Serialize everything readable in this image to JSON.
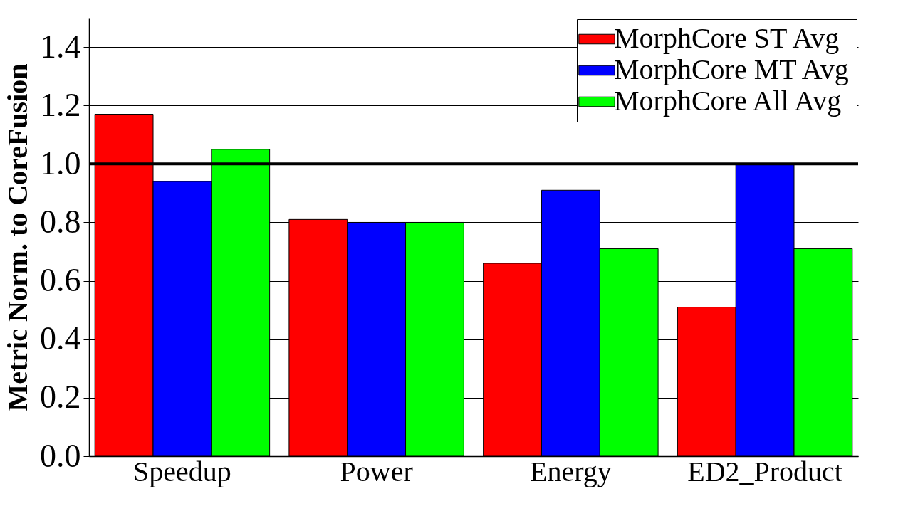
{
  "chart_data": {
    "type": "bar",
    "ylabel": "Metric Norm. to CoreFusion",
    "categories": [
      "Speedup",
      "Power",
      "Energy",
      "ED2_Product"
    ],
    "series": [
      {
        "name": "MorphCore ST Avg",
        "color": "#ff0000",
        "values": [
          1.17,
          0.81,
          0.66,
          0.51
        ]
      },
      {
        "name": "MorphCore MT Avg",
        "color": "#0000ff",
        "values": [
          0.94,
          0.8,
          0.91,
          1.0
        ]
      },
      {
        "name": "MorphCore All Avg",
        "color": "#00ff00",
        "values": [
          1.05,
          0.8,
          0.71,
          0.71
        ]
      }
    ],
    "ylim": [
      0,
      1.5
    ],
    "yticks": [
      {
        "value": 0,
        "label": "0.0"
      },
      {
        "value": 0.2,
        "label": "0.2"
      },
      {
        "value": 0.4,
        "label": "0.4"
      },
      {
        "value": 0.6,
        "label": "0.6"
      },
      {
        "value": 0.8,
        "label": "0.8"
      },
      {
        "value": 1,
        "label": "1.0"
      },
      {
        "value": 1.2,
        "label": "1.2"
      },
      {
        "value": 1.4,
        "label": "1.4"
      }
    ],
    "ref_lines": [
      {
        "axis": "y",
        "value": 1,
        "color": "#000000"
      }
    ],
    "grid": "y",
    "legend": "top right"
  }
}
